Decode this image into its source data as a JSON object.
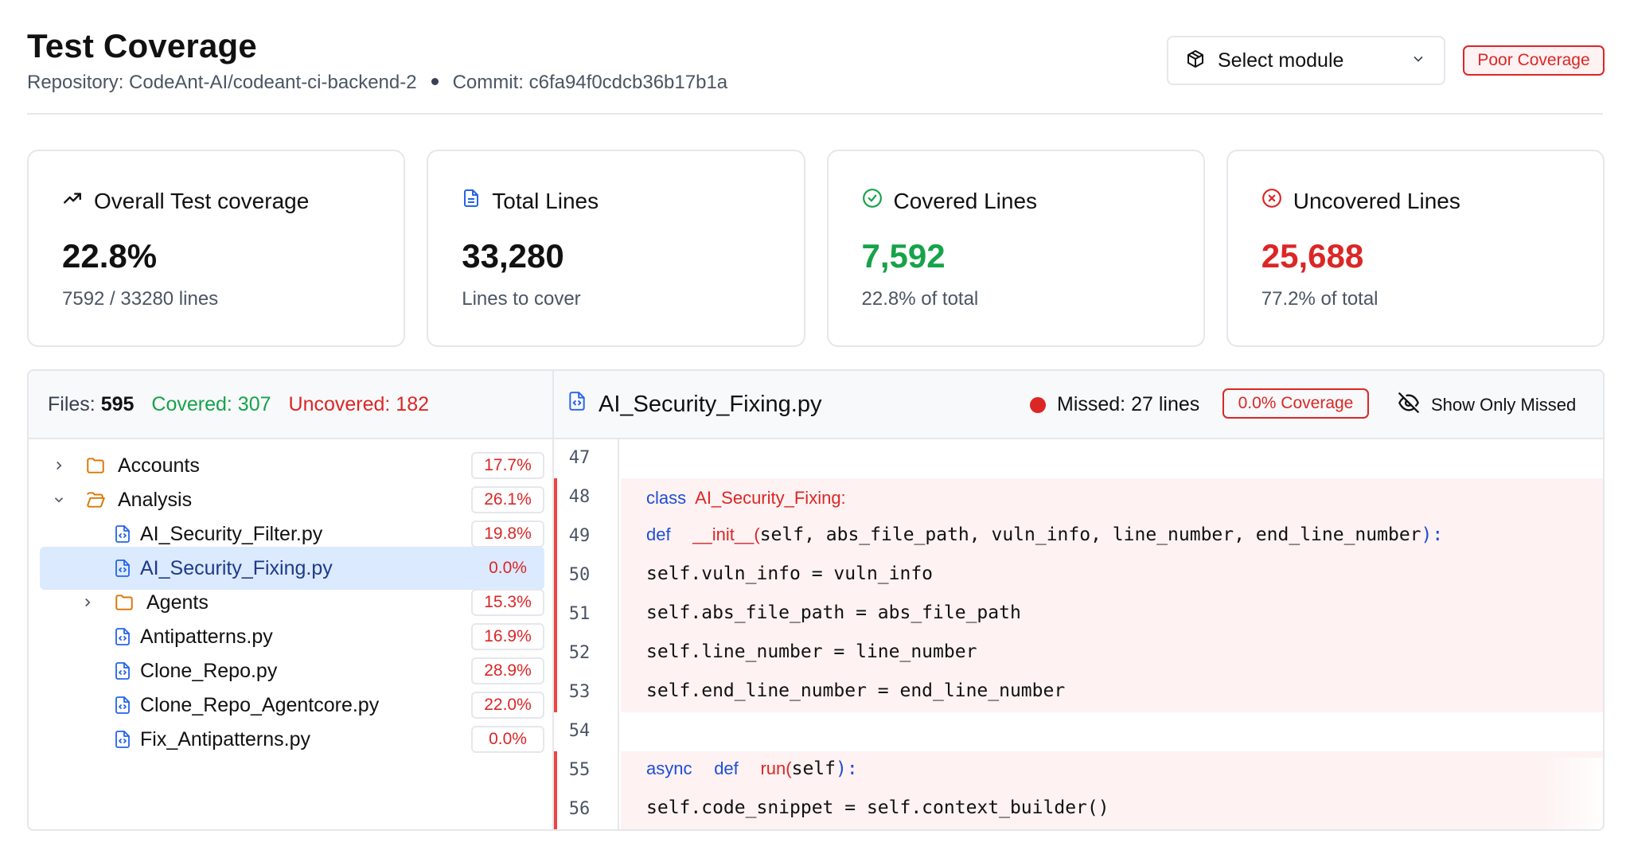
{
  "header": {
    "title": "Test Coverage",
    "repo_label": "Repository: CodeAnt-AI/codeant-ci-backend-2",
    "commit_label": "Commit: c6fa94f0cdcb36b17b1a",
    "module_select": "Select module",
    "coverage_badge": "Poor Coverage"
  },
  "cards": [
    {
      "icon": "trending-up-icon",
      "title": "Overall Test coverage",
      "value": "22.8%",
      "sub": "7592 / 33280 lines"
    },
    {
      "icon": "file-text-icon",
      "title": "Total Lines",
      "value": "33,280",
      "sub": "Lines to cover"
    },
    {
      "icon": "check-circle-icon",
      "title": "Covered Lines",
      "value": "7,592",
      "sub": "22.8% of total"
    },
    {
      "icon": "x-circle-icon",
      "title": "Uncovered Lines",
      "value": "25,688",
      "sub": "77.2% of total"
    }
  ],
  "colors": {
    "covered": "#16a34a",
    "uncovered": "#dc2626",
    "selected_bg": "#dbeafe",
    "missed_bg": "#fef2f2"
  },
  "files_summary": {
    "files_label": "Files:",
    "files_count": "595",
    "covered_label": "Covered: 307",
    "uncovered_label": "Uncovered: 182"
  },
  "tree": [
    {
      "type": "folder",
      "name": "Accounts",
      "pct": "17.7%",
      "expanded": false
    },
    {
      "type": "folder",
      "name": "Analysis",
      "pct": "26.1%",
      "expanded": true
    },
    {
      "type": "file",
      "name": "AI_Security_Filter.py",
      "pct": "19.8%"
    },
    {
      "type": "file",
      "name": "AI_Security_Fixing.py",
      "pct": "0.0%",
      "selected": true
    },
    {
      "type": "folder",
      "name": "Agents",
      "pct": "15.3%",
      "expanded": false
    },
    {
      "type": "file",
      "name": "Antipatterns.py",
      "pct": "16.9%"
    },
    {
      "type": "file",
      "name": "Clone_Repo.py",
      "pct": "28.9%"
    },
    {
      "type": "file",
      "name": "Clone_Repo_Agentcore.py",
      "pct": "22.0%"
    },
    {
      "type": "file",
      "name": "Fix_Antipatterns.py",
      "pct": "0.0%"
    }
  ],
  "viewer": {
    "file_name": "AI_Security_Fixing.py",
    "missed_label": "Missed: 27 lines",
    "coverage_label": "0.0% Coverage",
    "toggle_label": "Show Only Missed"
  },
  "code_lines": [
    {
      "no": "47",
      "missed": false
    },
    {
      "no": "48",
      "missed": true
    },
    {
      "no": "49",
      "missed": true
    },
    {
      "no": "50",
      "missed": true
    },
    {
      "no": "51",
      "missed": true
    },
    {
      "no": "52",
      "missed": true
    },
    {
      "no": "53",
      "missed": true
    },
    {
      "no": "54",
      "missed": false
    },
    {
      "no": "55",
      "missed": true
    },
    {
      "no": "56",
      "missed": true
    }
  ],
  "code": {
    "l48_kw": "class",
    "l48_name": "AI_Security_Fixing:",
    "l49_kw": "def",
    "l49_fn": "__init__(",
    "l49_args": "self, abs_file_path, vuln_info, line_number, end_line_number",
    "l49_end": "):",
    "l50": "self.vuln_info = vuln_info",
    "l51": "self.abs_file_path = abs_file_path",
    "l52": "self.line_number = line_number",
    "l53": "self.end_line_number = end_line_number",
    "l55_kw1": "async",
    "l55_kw2": "def",
    "l55_fn": "run(",
    "l55_args": "self",
    "l55_end": "):",
    "l56": "self.code_snippet = self.context_builder()"
  }
}
